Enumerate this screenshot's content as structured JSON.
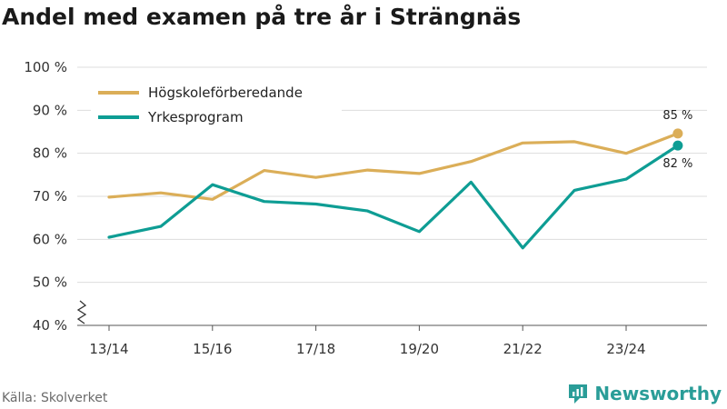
{
  "chart_data": {
    "type": "line",
    "title": "Andel med examen på tre år i Strängnäs",
    "categories": [
      "13/14",
      "14/15",
      "15/16",
      "16/17",
      "17/18",
      "18/19",
      "19/20",
      "20/21",
      "21/22",
      "22/23",
      "23/24",
      "24/25"
    ],
    "x_tick_labels": [
      "13/14",
      "15/16",
      "17/18",
      "19/20",
      "21/22",
      "23/24"
    ],
    "y_ticks": [
      40,
      50,
      60,
      70,
      80,
      90,
      100
    ],
    "y_tick_suffix": " %",
    "ylim": [
      40,
      100
    ],
    "axis_break": true,
    "grid": true,
    "legend_position": "top-left",
    "series": [
      {
        "name": "Högskoleförberedande",
        "color": "#dbae58",
        "values": [
          69.8,
          70.8,
          69.3,
          76.0,
          74.4,
          76.1,
          75.3,
          78.1,
          82.4,
          82.7,
          80.0,
          84.6
        ],
        "end_label": "85 %"
      },
      {
        "name": "Yrkesprogram",
        "color": "#0e9d94",
        "values": [
          60.5,
          63.0,
          72.7,
          68.8,
          68.2,
          66.6,
          61.8,
          73.3,
          58.0,
          71.4,
          74.0,
          81.8
        ],
        "end_label": "82 %"
      }
    ]
  },
  "footer": {
    "source": "Källa: Skolverket",
    "brand": "Newsworthy"
  }
}
